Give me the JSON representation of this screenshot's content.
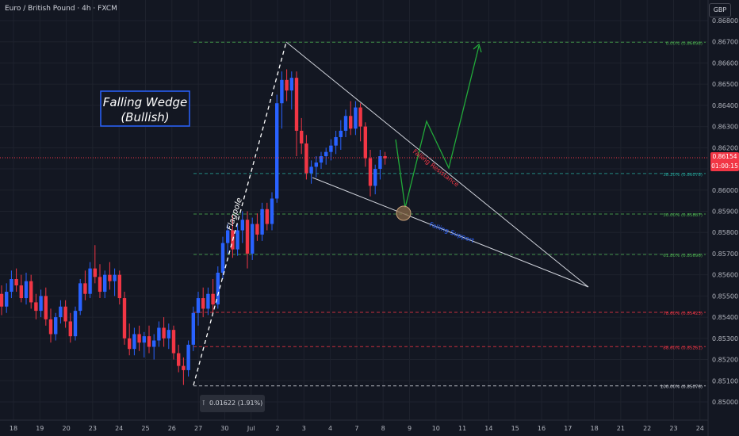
{
  "header": {
    "symbol_label": "Euro / British Pound · 4h · FXCM",
    "currency": "GBP"
  },
  "price_tag": {
    "price": "0.86154",
    "countdown": "01:00:15"
  },
  "measure_label": "0.01622 (1.91%)",
  "annotations": {
    "title_line1": "Falling Wedge",
    "title_line2": "(Bullish)",
    "flagpole": "Flagpole",
    "resistance": "Falling Resistance",
    "support": "Falling Support"
  },
  "colors": {
    "background": "#131722",
    "bull": "#2962ff",
    "bear": "#f23645",
    "projection": "#22ab3a",
    "title_box": "#2962ff"
  },
  "chart_data": {
    "type": "candlestick",
    "title": "",
    "xlabel": "",
    "ylabel": "",
    "ylim": [
      0.85,
      0.868
    ],
    "grid": true,
    "x_tick_labels": [
      "18",
      "19",
      "20",
      "23",
      "24",
      "25",
      "26",
      "27",
      "30",
      "Jul",
      "2",
      "3",
      "4",
      "7",
      "8",
      "9",
      "10",
      "11",
      "14",
      "15",
      "16",
      "17",
      "18",
      "21",
      "22",
      "23",
      "24"
    ],
    "y_tick_labels": [
      "0.86800",
      "0.86700",
      "0.86600",
      "0.86500",
      "0.86400",
      "0.86300",
      "0.86200",
      "0.86100",
      "0.86000",
      "0.85900",
      "0.85800",
      "0.85700",
      "0.85600",
      "0.85500",
      "0.85400",
      "0.85300",
      "0.85200",
      "0.85100",
      "0.85000"
    ],
    "fib_levels": [
      {
        "label": "0.00% (0.86698)",
        "value": 0.86698,
        "color": "#4caf50"
      },
      {
        "label": "38.20% (0.86078)",
        "value": 0.86078,
        "color": "#26a69a"
      },
      {
        "label": "50.00% (0.85887)",
        "value": 0.85887,
        "color": "#4caf50"
      },
      {
        "label": "61.80% (0.85696)",
        "value": 0.85696,
        "color": "#4caf50"
      },
      {
        "label": "78.60% (0.85423)",
        "value": 0.85423,
        "color": "#f23645"
      },
      {
        "label": "88.60% (0.85261)",
        "value": 0.85261,
        "color": "#f23645"
      },
      {
        "label": "100.00% (0.85076)",
        "value": 0.85076,
        "color": "#d1d4dc"
      }
    ],
    "candles": [
      [
        0.8551,
        0.8555,
        0.8541,
        0.8545
      ],
      [
        0.8545,
        0.8556,
        0.8542,
        0.8552
      ],
      [
        0.8552,
        0.8562,
        0.8549,
        0.8558
      ],
      [
        0.8558,
        0.8563,
        0.8552,
        0.8555
      ],
      [
        0.8555,
        0.856,
        0.8547,
        0.8549
      ],
      [
        0.8549,
        0.8561,
        0.8546,
        0.8557
      ],
      [
        0.8557,
        0.856,
        0.8544,
        0.8547
      ],
      [
        0.8547,
        0.8551,
        0.8539,
        0.8543
      ],
      [
        0.8543,
        0.8553,
        0.854,
        0.855
      ],
      [
        0.855,
        0.8554,
        0.8536,
        0.8539
      ],
      [
        0.8539,
        0.8544,
        0.8528,
        0.8532
      ],
      [
        0.8532,
        0.8542,
        0.8529,
        0.854
      ],
      [
        0.854,
        0.8548,
        0.8537,
        0.8545
      ],
      [
        0.8545,
        0.8548,
        0.8535,
        0.8538
      ],
      [
        0.8538,
        0.8542,
        0.8528,
        0.8531
      ],
      [
        0.8531,
        0.8545,
        0.8529,
        0.8543
      ],
      [
        0.8543,
        0.8558,
        0.8541,
        0.8556
      ],
      [
        0.8556,
        0.8562,
        0.8548,
        0.8551
      ],
      [
        0.8551,
        0.8566,
        0.8549,
        0.8563
      ],
      [
        0.8563,
        0.8574,
        0.8556,
        0.8559
      ],
      [
        0.8559,
        0.8565,
        0.8549,
        0.8552
      ],
      [
        0.8552,
        0.8562,
        0.8549,
        0.856
      ],
      [
        0.856,
        0.8566,
        0.8553,
        0.8557
      ],
      [
        0.8557,
        0.8563,
        0.855,
        0.856
      ],
      [
        0.856,
        0.8562,
        0.8546,
        0.8549
      ],
      [
        0.8549,
        0.8552,
        0.8527,
        0.853
      ],
      [
        0.853,
        0.8537,
        0.8522,
        0.8525
      ],
      [
        0.8525,
        0.8535,
        0.8522,
        0.8532
      ],
      [
        0.8532,
        0.8536,
        0.8524,
        0.8528
      ],
      [
        0.8528,
        0.8533,
        0.8521,
        0.8531
      ],
      [
        0.8531,
        0.8536,
        0.8523,
        0.8526
      ],
      [
        0.8526,
        0.8532,
        0.852,
        0.8529
      ],
      [
        0.8529,
        0.8538,
        0.8526,
        0.8535
      ],
      [
        0.8535,
        0.854,
        0.8526,
        0.853
      ],
      [
        0.853,
        0.8537,
        0.8525,
        0.8534
      ],
      [
        0.8534,
        0.8536,
        0.852,
        0.8523
      ],
      [
        0.8523,
        0.8527,
        0.8514,
        0.8517
      ],
      [
        0.8517,
        0.8521,
        0.8508,
        0.8515
      ],
      [
        0.8515,
        0.8529,
        0.8512,
        0.8527
      ],
      [
        0.8527,
        0.8545,
        0.8524,
        0.8542
      ],
      [
        0.8542,
        0.8552,
        0.8536,
        0.8549
      ],
      [
        0.8549,
        0.8554,
        0.854,
        0.8544
      ],
      [
        0.8544,
        0.8554,
        0.8541,
        0.8551
      ],
      [
        0.8551,
        0.8558,
        0.8542,
        0.8546
      ],
      [
        0.8546,
        0.8564,
        0.8544,
        0.8561
      ],
      [
        0.8561,
        0.8578,
        0.8558,
        0.8575
      ],
      [
        0.8575,
        0.8584,
        0.857,
        0.8581
      ],
      [
        0.8581,
        0.8588,
        0.8568,
        0.8572
      ],
      [
        0.8572,
        0.8584,
        0.8569,
        0.8581
      ],
      [
        0.8581,
        0.859,
        0.8575,
        0.8586
      ],
      [
        0.8586,
        0.859,
        0.8563,
        0.857
      ],
      [
        0.857,
        0.8587,
        0.8567,
        0.8584
      ],
      [
        0.8584,
        0.8589,
        0.8576,
        0.8579
      ],
      [
        0.8579,
        0.8594,
        0.8576,
        0.8591
      ],
      [
        0.8591,
        0.8594,
        0.8581,
        0.8584
      ],
      [
        0.8584,
        0.8599,
        0.8581,
        0.8596
      ],
      [
        0.8596,
        0.8645,
        0.8594,
        0.8641
      ],
      [
        0.8641,
        0.8656,
        0.8629,
        0.8652
      ],
      [
        0.8652,
        0.8657,
        0.8642,
        0.8647
      ],
      [
        0.8647,
        0.8656,
        0.8638,
        0.8653
      ],
      [
        0.8653,
        0.8656,
        0.8616,
        0.8628
      ],
      [
        0.8628,
        0.8634,
        0.8617,
        0.8622
      ],
      [
        0.8622,
        0.8626,
        0.8605,
        0.8608
      ],
      [
        0.8608,
        0.8614,
        0.8603,
        0.8611
      ],
      [
        0.8611,
        0.8616,
        0.8606,
        0.8613
      ],
      [
        0.8613,
        0.8618,
        0.861,
        0.8616
      ],
      [
        0.8616,
        0.862,
        0.8612,
        0.8618
      ],
      [
        0.8618,
        0.8624,
        0.8614,
        0.8621
      ],
      [
        0.8621,
        0.8628,
        0.8617,
        0.8625
      ],
      [
        0.8625,
        0.8633,
        0.8619,
        0.8628
      ],
      [
        0.8628,
        0.8638,
        0.8625,
        0.8635
      ],
      [
        0.8635,
        0.8642,
        0.8626,
        0.8629
      ],
      [
        0.8629,
        0.8642,
        0.8626,
        0.8639
      ],
      [
        0.8639,
        0.8641,
        0.8623,
        0.863
      ],
      [
        0.863,
        0.8632,
        0.8611,
        0.8615
      ],
      [
        0.8615,
        0.8619,
        0.8597,
        0.8602
      ],
      [
        0.8602,
        0.8612,
        0.8598,
        0.861
      ],
      [
        0.861,
        0.8619,
        0.8605,
        0.8616
      ],
      [
        0.8616,
        0.8618,
        0.8612,
        0.8615
      ]
    ]
  }
}
